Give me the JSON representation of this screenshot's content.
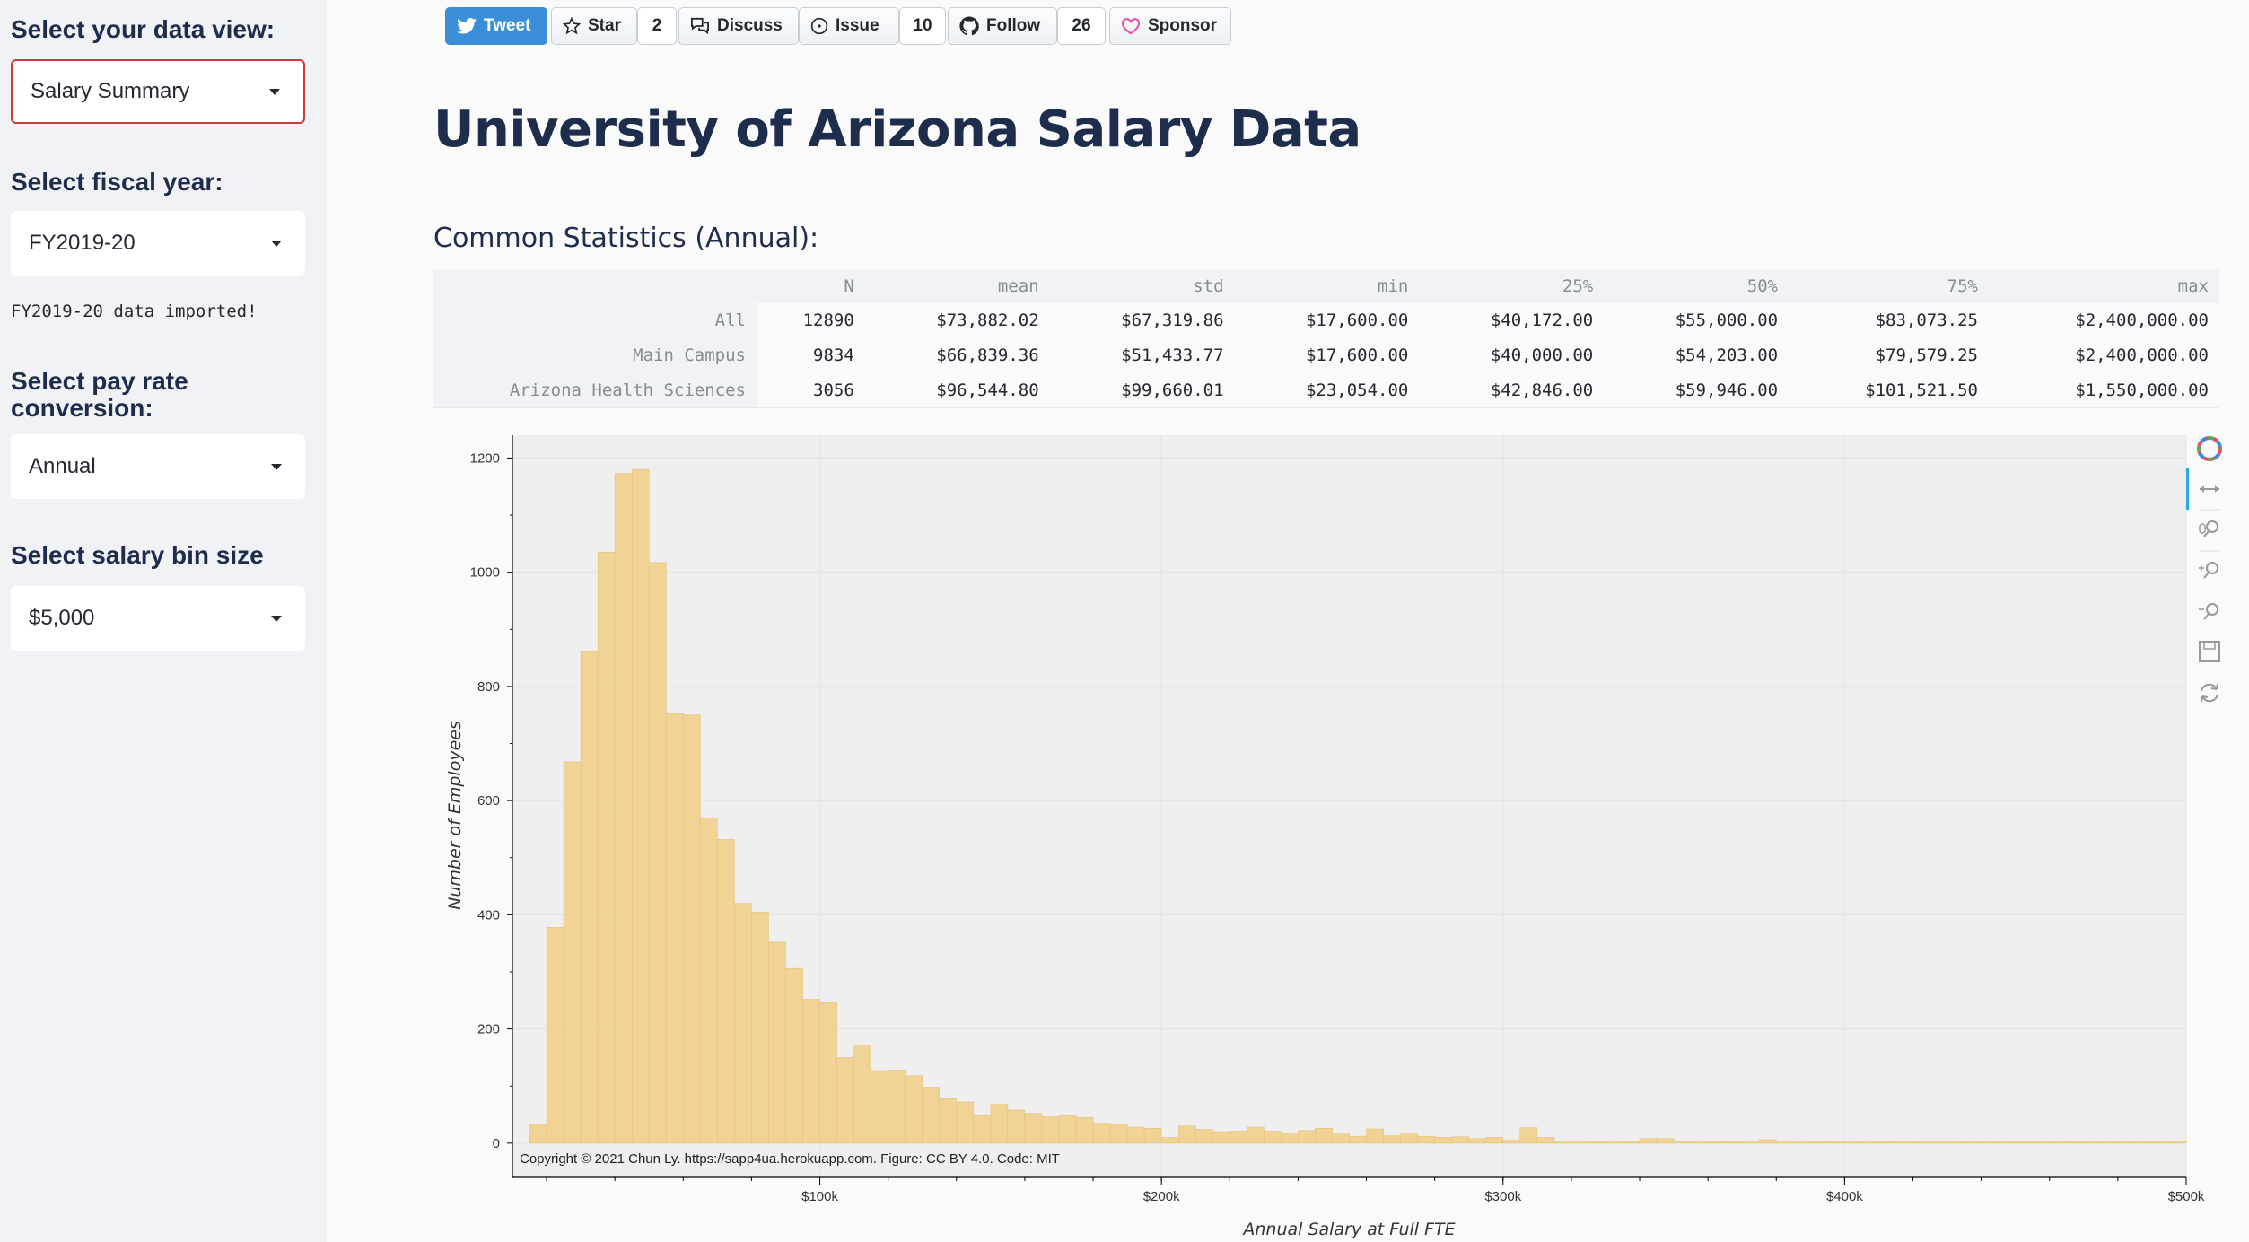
{
  "sidebar": {
    "data_view": {
      "label": "Select your data view:",
      "value": "Salary Summary"
    },
    "fiscal_year": {
      "label": "Select fiscal year:",
      "value": "FY2019-20"
    },
    "import_message": "FY2019-20 data imported!",
    "pay_rate": {
      "label_line1": "Select pay rate",
      "label_line2": "conversion:",
      "value": "Annual"
    },
    "bin_size": {
      "label": "Select salary bin size",
      "value": "$5,000"
    }
  },
  "badges": {
    "tweet": "Tweet",
    "star": "Star",
    "star_count": "2",
    "discuss": "Discuss",
    "issue": "Issue",
    "issue_count": "10",
    "follow": "Follow",
    "follow_count": "26",
    "sponsor": "Sponsor"
  },
  "page_title": "University of Arizona Salary Data",
  "section_title": "Common Statistics (Annual):",
  "stats_table": {
    "columns": [
      "N",
      "mean",
      "std",
      "min",
      "25%",
      "50%",
      "75%",
      "max"
    ],
    "rows": [
      {
        "name": "All",
        "values": [
          "12890",
          "$73,882.02",
          "$67,319.86",
          "$17,600.00",
          "$40,172.00",
          "$55,000.00",
          "$83,073.25",
          "$2,400,000.00"
        ]
      },
      {
        "name": "Main Campus",
        "values": [
          "9834",
          "$66,839.36",
          "$51,433.77",
          "$17,600.00",
          "$40,000.00",
          "$54,203.00",
          "$79,579.25",
          "$2,400,000.00"
        ]
      },
      {
        "name": "Arizona Health Sciences",
        "values": [
          "3056",
          "$96,544.80",
          "$99,660.01",
          "$23,054.00",
          "$42,846.00",
          "$59,946.00",
          "$101,521.50",
          "$1,550,000.00"
        ]
      }
    ]
  },
  "colors": {
    "bar": "#f0cf8b",
    "bar_edge": "#e8c27a",
    "plot_bg": "#efefef",
    "accent_red": "#c73b3b",
    "tweet_blue": "#3a8fd8",
    "sponsor_pink": "#ea4aaa"
  },
  "chart_data": {
    "type": "bar",
    "subtype": "histogram",
    "xlabel": "Annual Salary at Full FTE",
    "ylabel": "Number of Employees",
    "annotation": "Copyright © 2021 Chun Ly. https://sapp4ua.herokuapp.com.  Figure: CC BY 4.0.  Code: MIT",
    "bin_width": 5000,
    "xlim": [
      10000,
      500000
    ],
    "ylim": [
      -60,
      1240
    ],
    "x_ticks": [
      100000,
      200000,
      300000,
      400000,
      500000
    ],
    "x_tick_labels": [
      "$100k",
      "$200k",
      "$300k",
      "$400k",
      "$500k"
    ],
    "y_ticks": [
      0,
      200,
      400,
      600,
      800,
      1000,
      1200
    ],
    "grid": true,
    "bin_starts": [
      15000,
      20000,
      25000,
      30000,
      35000,
      40000,
      45000,
      50000,
      55000,
      60000,
      65000,
      70000,
      75000,
      80000,
      85000,
      90000,
      95000,
      100000,
      105000,
      110000,
      115000,
      120000,
      125000,
      130000,
      135000,
      140000,
      145000,
      150000,
      155000,
      160000,
      165000,
      170000,
      175000,
      180000,
      185000,
      190000,
      195000,
      200000,
      205000,
      210000,
      215000,
      220000,
      225000,
      230000,
      235000,
      240000,
      245000,
      250000,
      255000,
      260000,
      265000,
      270000,
      275000,
      280000,
      285000,
      290000,
      295000,
      300000,
      305000,
      310000,
      315000,
      320000,
      325000,
      330000,
      335000,
      340000,
      345000,
      350000,
      355000,
      360000,
      365000,
      370000,
      375000,
      380000,
      385000,
      390000,
      395000,
      400000,
      405000,
      410000,
      415000,
      420000,
      425000,
      430000,
      435000,
      440000,
      445000,
      450000,
      455000,
      460000,
      465000,
      470000,
      475000,
      480000,
      485000,
      490000,
      495000
    ],
    "counts": [
      32,
      378,
      668,
      862,
      1035,
      1173,
      1180,
      1017,
      752,
      750,
      570,
      532,
      420,
      405,
      352,
      306,
      252,
      246,
      150,
      172,
      127,
      128,
      118,
      98,
      78,
      72,
      48,
      68,
      58,
      52,
      46,
      48,
      45,
      35,
      33,
      28,
      26,
      10,
      30,
      24,
      20,
      21,
      28,
      21,
      18,
      22,
      26,
      16,
      12,
      25,
      13,
      18,
      12,
      10,
      11,
      8,
      10,
      5,
      27,
      10,
      4,
      4,
      3,
      4,
      3,
      8,
      8,
      3,
      4,
      3,
      3,
      4,
      6,
      4,
      4,
      3,
      3,
      2,
      4,
      3,
      2,
      2,
      2,
      2,
      2,
      2,
      2,
      3,
      2,
      2,
      3,
      2,
      2,
      2,
      2,
      2,
      2
    ]
  }
}
